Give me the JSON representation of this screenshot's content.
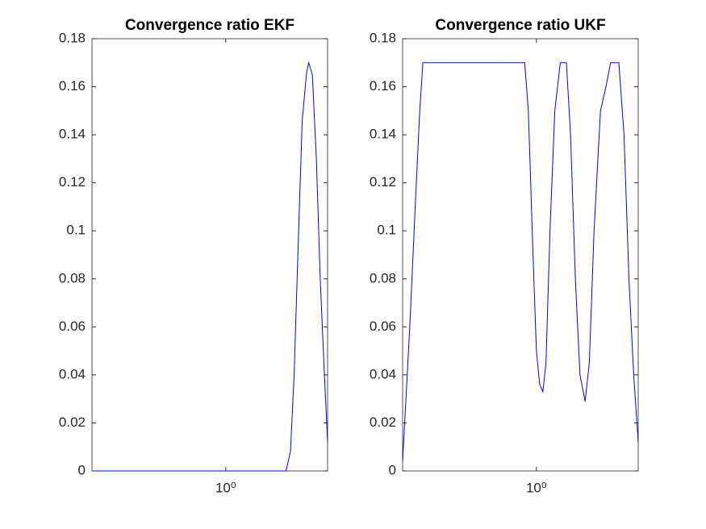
{
  "chart_data": [
    {
      "type": "line",
      "title": "Convergence ratio EKF",
      "log_x": true,
      "color": "#0000ff",
      "x": [
        0.3,
        1.72,
        1.79,
        1.85,
        1.92,
        1.99,
        2.07,
        2.11,
        2.18,
        2.26,
        2.34,
        2.43,
        2.5
      ],
      "values": [
        0,
        0,
        0.008,
        0.04,
        0.095,
        0.146,
        0.166,
        0.17,
        0.165,
        0.13,
        0.08,
        0.04,
        0.012
      ],
      "xlim": [
        0.3,
        2.5
      ],
      "xticks": [
        {
          "value": 1,
          "label": "10⁰"
        }
      ],
      "ylim": [
        0,
        0.18
      ],
      "yticks": [
        0,
        0.02,
        0.04,
        0.06,
        0.08,
        0.1,
        0.12,
        0.14,
        0.16,
        0.18
      ]
    },
    {
      "type": "line",
      "title": "Convergence ratio UKF",
      "log_x": true,
      "color": "#0000ff",
      "x": [
        0.3,
        0.32,
        0.336,
        0.35,
        0.36,
        0.9,
        0.93,
        0.97,
        1.0,
        1.03,
        1.06,
        1.09,
        1.13,
        1.18,
        1.24,
        1.31,
        1.36,
        1.42,
        1.48,
        1.55,
        1.61,
        1.68,
        1.78,
        1.87,
        1.95,
        2.1,
        2.2,
        2.3,
        2.4,
        2.5
      ],
      "values": [
        0.004,
        0.06,
        0.11,
        0.15,
        0.17,
        0.17,
        0.15,
        0.09,
        0.05,
        0.036,
        0.033,
        0.045,
        0.1,
        0.15,
        0.17,
        0.17,
        0.14,
        0.08,
        0.04,
        0.029,
        0.045,
        0.1,
        0.15,
        0.16,
        0.17,
        0.17,
        0.14,
        0.08,
        0.04,
        0.012
      ],
      "xlim": [
        0.3,
        2.5
      ],
      "xticks": [
        {
          "value": 1,
          "label": "10⁰"
        }
      ],
      "ylim": [
        0,
        0.18
      ],
      "yticks": [
        0,
        0.02,
        0.04,
        0.06,
        0.08,
        0.1,
        0.12,
        0.14,
        0.16,
        0.18
      ]
    }
  ]
}
